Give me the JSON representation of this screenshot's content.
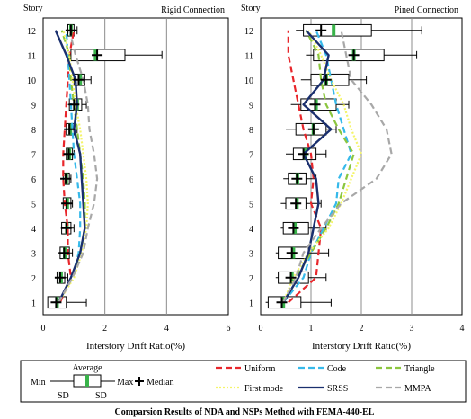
{
  "caption": "Comparsion Results of NDA and NSPs Method with FEMA-440-EL",
  "colors": {
    "uniform": "#e8262b",
    "code": "#36b9ea",
    "triangle": "#8cc63e",
    "first_mode": "#f4f46a",
    "srss": "#1a2f6e",
    "mmpa": "#a8a8a8",
    "average_bar": "#39b34a",
    "grid": "#8c8c8c"
  },
  "legend": {
    "box_key": {
      "average": "Average",
      "min": "Min",
      "max": "Max",
      "sd_left": "SD",
      "sd_right": "SD",
      "median": "Median"
    },
    "series": [
      {
        "key": "uniform",
        "label": "Uniform",
        "style": "dash"
      },
      {
        "key": "code",
        "label": "Code",
        "style": "dash"
      },
      {
        "key": "triangle",
        "label": "Triangle",
        "style": "dash"
      },
      {
        "key": "first_mode",
        "label": "First mode",
        "style": "dot"
      },
      {
        "key": "srss",
        "label": "SRSS",
        "style": "solid"
      },
      {
        "key": "mmpa",
        "label": "MMPA",
        "style": "dash"
      }
    ]
  },
  "chart_data": [
    {
      "type": "boxplot-line",
      "title": "Rigid Connection",
      "ylabel": "Story",
      "xlabel": "Interstory Drift Ratio(%)",
      "xlim": [
        0,
        6
      ],
      "xticks": [
        0,
        2,
        4,
        6
      ],
      "stories": [
        1,
        2,
        3,
        4,
        5,
        6,
        7,
        8,
        9,
        10,
        11,
        12
      ],
      "grid": "vertical",
      "boxes": {
        "min": [
          0.15,
          0.4,
          0.5,
          0.6,
          0.6,
          0.6,
          0.7,
          0.7,
          0.8,
          0.9,
          0.9,
          0.8
        ],
        "sd_low": [
          0.15,
          0.45,
          0.55,
          0.6,
          0.65,
          0.65,
          0.75,
          0.75,
          0.85,
          1.0,
          0.9,
          0.8
        ],
        "sd_high": [
          0.75,
          0.7,
          0.85,
          0.9,
          0.9,
          0.85,
          0.95,
          1.0,
          1.25,
          1.35,
          2.65,
          1.0
        ],
        "max": [
          1.4,
          0.8,
          0.95,
          1.0,
          0.95,
          0.9,
          1.0,
          1.1,
          1.4,
          1.55,
          3.85,
          1.1
        ],
        "average": [
          0.45,
          0.58,
          0.7,
          0.77,
          0.78,
          0.75,
          0.85,
          0.88,
          1.1,
          1.2,
          1.7,
          0.9
        ],
        "median": [
          0.42,
          0.55,
          0.68,
          0.75,
          0.76,
          0.73,
          0.83,
          0.85,
          1.0,
          1.15,
          1.75,
          0.9
        ]
      },
      "series": [
        {
          "key": "uniform",
          "values": [
            0.55,
            0.9,
            0.8,
            0.8,
            0.7,
            0.65,
            0.65,
            0.7,
            0.75,
            0.8,
            0.85,
            1.0
          ]
        },
        {
          "key": "code",
          "values": [
            0.5,
            0.95,
            1.15,
            1.2,
            1.2,
            1.1,
            1.0,
            0.95,
            0.9,
            0.85,
            0.8,
            0.75
          ]
        },
        {
          "key": "triangle",
          "values": [
            0.5,
            0.95,
            1.2,
            1.35,
            1.35,
            1.3,
            1.2,
            1.1,
            1.0,
            0.9,
            0.85,
            0.6
          ]
        },
        {
          "key": "first_mode",
          "values": [
            0.5,
            1.0,
            1.25,
            1.4,
            1.45,
            1.4,
            1.3,
            1.2,
            1.05,
            0.95,
            0.85,
            0.65
          ]
        },
        {
          "key": "srss",
          "values": [
            0.5,
            0.9,
            1.2,
            1.35,
            1.3,
            1.25,
            1.2,
            1.0,
            1.1,
            1.05,
            0.75,
            0.4
          ]
        },
        {
          "key": "mmpa",
          "values": [
            0.5,
            0.95,
            1.3,
            1.45,
            1.65,
            1.75,
            1.65,
            1.5,
            1.45,
            1.3,
            1.05,
            0.85
          ]
        }
      ]
    },
    {
      "type": "boxplot-line",
      "title": "Pined Connection",
      "ylabel": "Story",
      "xlabel": "Interstory Drift Ratio(%)",
      "xlim": [
        0,
        4
      ],
      "xticks": [
        0,
        1,
        2,
        3,
        4
      ],
      "stories": [
        1,
        2,
        3,
        4,
        5,
        6,
        7,
        8,
        9,
        10,
        11,
        12
      ],
      "grid": "vertical",
      "boxes": {
        "min": [
          0.1,
          0.3,
          0.3,
          0.4,
          0.4,
          0.45,
          0.5,
          0.5,
          0.6,
          0.8,
          0.9,
          0.7
        ],
        "sd_low": [
          0.15,
          0.35,
          0.35,
          0.45,
          0.5,
          0.55,
          0.65,
          0.7,
          0.8,
          1.0,
          1.05,
          0.85
        ],
        "sd_high": [
          0.8,
          0.95,
          0.95,
          0.95,
          0.9,
          0.9,
          1.1,
          1.3,
          1.5,
          1.75,
          2.45,
          2.2
        ],
        "max": [
          1.4,
          1.3,
          1.35,
          1.3,
          1.2,
          1.1,
          1.3,
          1.5,
          1.75,
          2.1,
          3.1,
          3.2
        ],
        "average": [
          0.45,
          0.62,
          0.65,
          0.68,
          0.72,
          0.73,
          0.88,
          1.05,
          1.1,
          1.3,
          1.85,
          1.45
        ],
        "median": [
          0.42,
          0.6,
          0.62,
          0.65,
          0.7,
          0.72,
          0.85,
          1.05,
          1.08,
          1.3,
          1.85,
          1.2
        ]
      },
      "series": [
        {
          "key": "uniform",
          "values": [
            0.55,
            1.1,
            1.15,
            1.2,
            1.0,
            1.05,
            1.0,
            0.85,
            0.75,
            0.65,
            0.55,
            0.55
          ]
        },
        {
          "key": "code",
          "values": [
            0.45,
            0.85,
            1.0,
            1.25,
            1.5,
            1.55,
            1.8,
            1.65,
            1.5,
            1.4,
            1.3,
            1.1
          ]
        },
        {
          "key": "triangle",
          "values": [
            0.45,
            0.7,
            1.0,
            1.3,
            1.55,
            1.7,
            1.85,
            1.55,
            1.3,
            1.2,
            1.15,
            0.9
          ]
        },
        {
          "key": "first_mode",
          "values": [
            0.45,
            0.65,
            0.95,
            1.35,
            1.6,
            1.8,
            2.0,
            1.8,
            1.65,
            1.4,
            1.2,
            0.95
          ]
        },
        {
          "key": "srss",
          "values": [
            0.45,
            0.75,
            0.95,
            1.05,
            1.15,
            1.1,
            0.85,
            1.4,
            0.85,
            1.25,
            1.35,
            0.9
          ]
        },
        {
          "key": "mmpa",
          "values": [
            0.45,
            0.7,
            0.85,
            1.2,
            1.6,
            2.3,
            2.6,
            2.5,
            2.2,
            1.8,
            1.7,
            1.6
          ]
        }
      ]
    }
  ]
}
